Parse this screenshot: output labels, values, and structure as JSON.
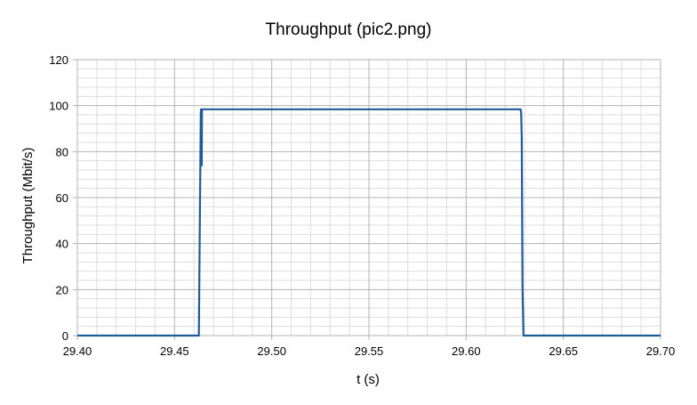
{
  "chart_data": {
    "type": "line",
    "title": "Throughput (pic2.png)",
    "xlabel": "t (s)",
    "ylabel": "Throughput (Mbit/s)",
    "xlim": [
      29.4,
      29.7
    ],
    "ylim": [
      0,
      120
    ],
    "x_ticks": [
      29.4,
      29.45,
      29.5,
      29.55,
      29.6,
      29.65,
      29.7
    ],
    "x_tick_labels": [
      "29.40",
      "29.45",
      "29.50",
      "29.55",
      "29.60",
      "29.65",
      "29.70"
    ],
    "y_ticks": [
      0,
      20,
      40,
      60,
      80,
      100,
      120
    ],
    "y_tick_labels": [
      "0",
      "20",
      "40",
      "60",
      "80",
      "100",
      "120"
    ],
    "grid": true,
    "minor_grid": true,
    "legend": "none",
    "series": [
      {
        "color": "#1f5b9a",
        "x": [
          29.4,
          29.4625,
          29.4635,
          29.4636,
          29.4637,
          29.464,
          29.4641,
          29.4642,
          29.628,
          29.6283,
          29.6286,
          29.629,
          29.6295,
          29.7
        ],
        "y": [
          0,
          0,
          97,
          98.4,
          74,
          74,
          98.4,
          98.4,
          98.4,
          97,
          86,
          20,
          0,
          0
        ]
      }
    ]
  }
}
